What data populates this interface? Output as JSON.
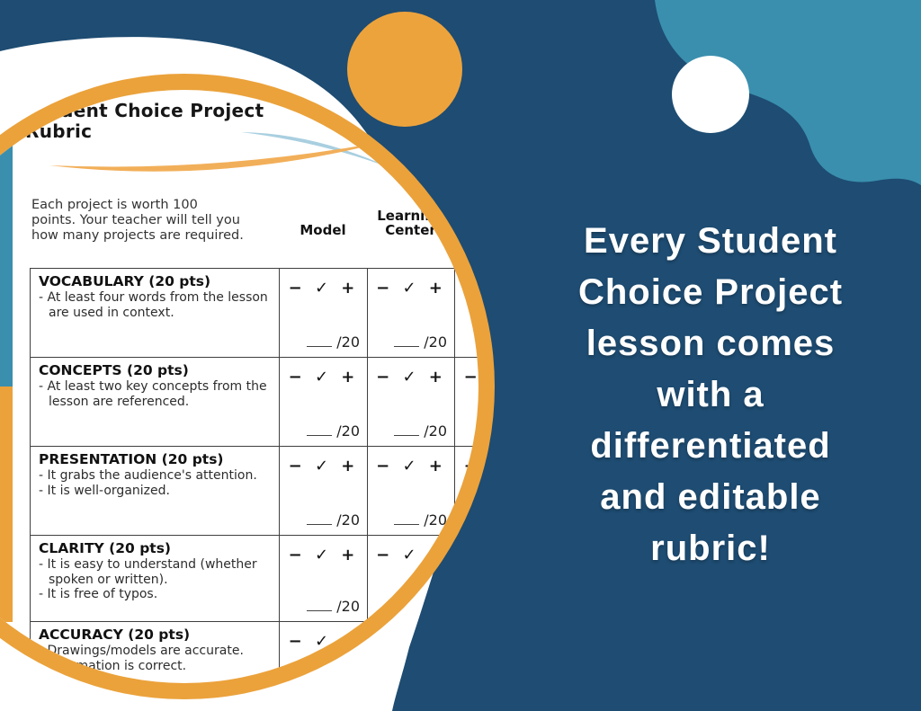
{
  "meta": {
    "description": "Promotional graphic showing a Student Choice Project rubric preview in a magnifier-style circle"
  },
  "colors": {
    "background_navy": "#1E4C72",
    "accent_orange": "#EBA23B",
    "accent_teal": "#3A8FAE",
    "white": "#FFFFFF",
    "swoosh_blue": "#A9CFE0",
    "swoosh_orange": "#F2AF59"
  },
  "headline": {
    "text": "Every Student Choice Project lesson comes with a differentiated and editable rubric!",
    "lines": [
      "Every Student",
      "Choice Project",
      "lesson comes",
      "with a",
      "differentiated",
      "and editable",
      "rubric!"
    ]
  },
  "rubric": {
    "title_line1": "Student Choice Project",
    "title_line2": "Rubric",
    "intro_lines": [
      "Each project is worth 100",
      "points. Your teacher will tell you",
      "how many projects are required."
    ],
    "columns": [
      "Model",
      "Learning Center"
    ],
    "score_marks": "− ✓ +",
    "score_denom": "/20",
    "rows": [
      {
        "title": "VOCABULARY (20 pts)",
        "bullets": [
          "At least four words from the lesson are used in context."
        ]
      },
      {
        "title": "CONCEPTS (20 pts)",
        "bullets": [
          "At least two key concepts from the lesson are referenced."
        ]
      },
      {
        "title": "PRESENTATION (20 pts)",
        "bullets": [
          "It grabs the audience's attention.",
          "It is well-organized."
        ]
      },
      {
        "title": "CLARITY (20 pts)",
        "bullets": [
          "It is easy to understand (whether spoken or written).",
          "It is free of typos."
        ]
      },
      {
        "title": "ACCURACY (20 pts)",
        "bullets": [
          "Drawings/models are accurate.",
          "Information is correct."
        ]
      }
    ]
  }
}
